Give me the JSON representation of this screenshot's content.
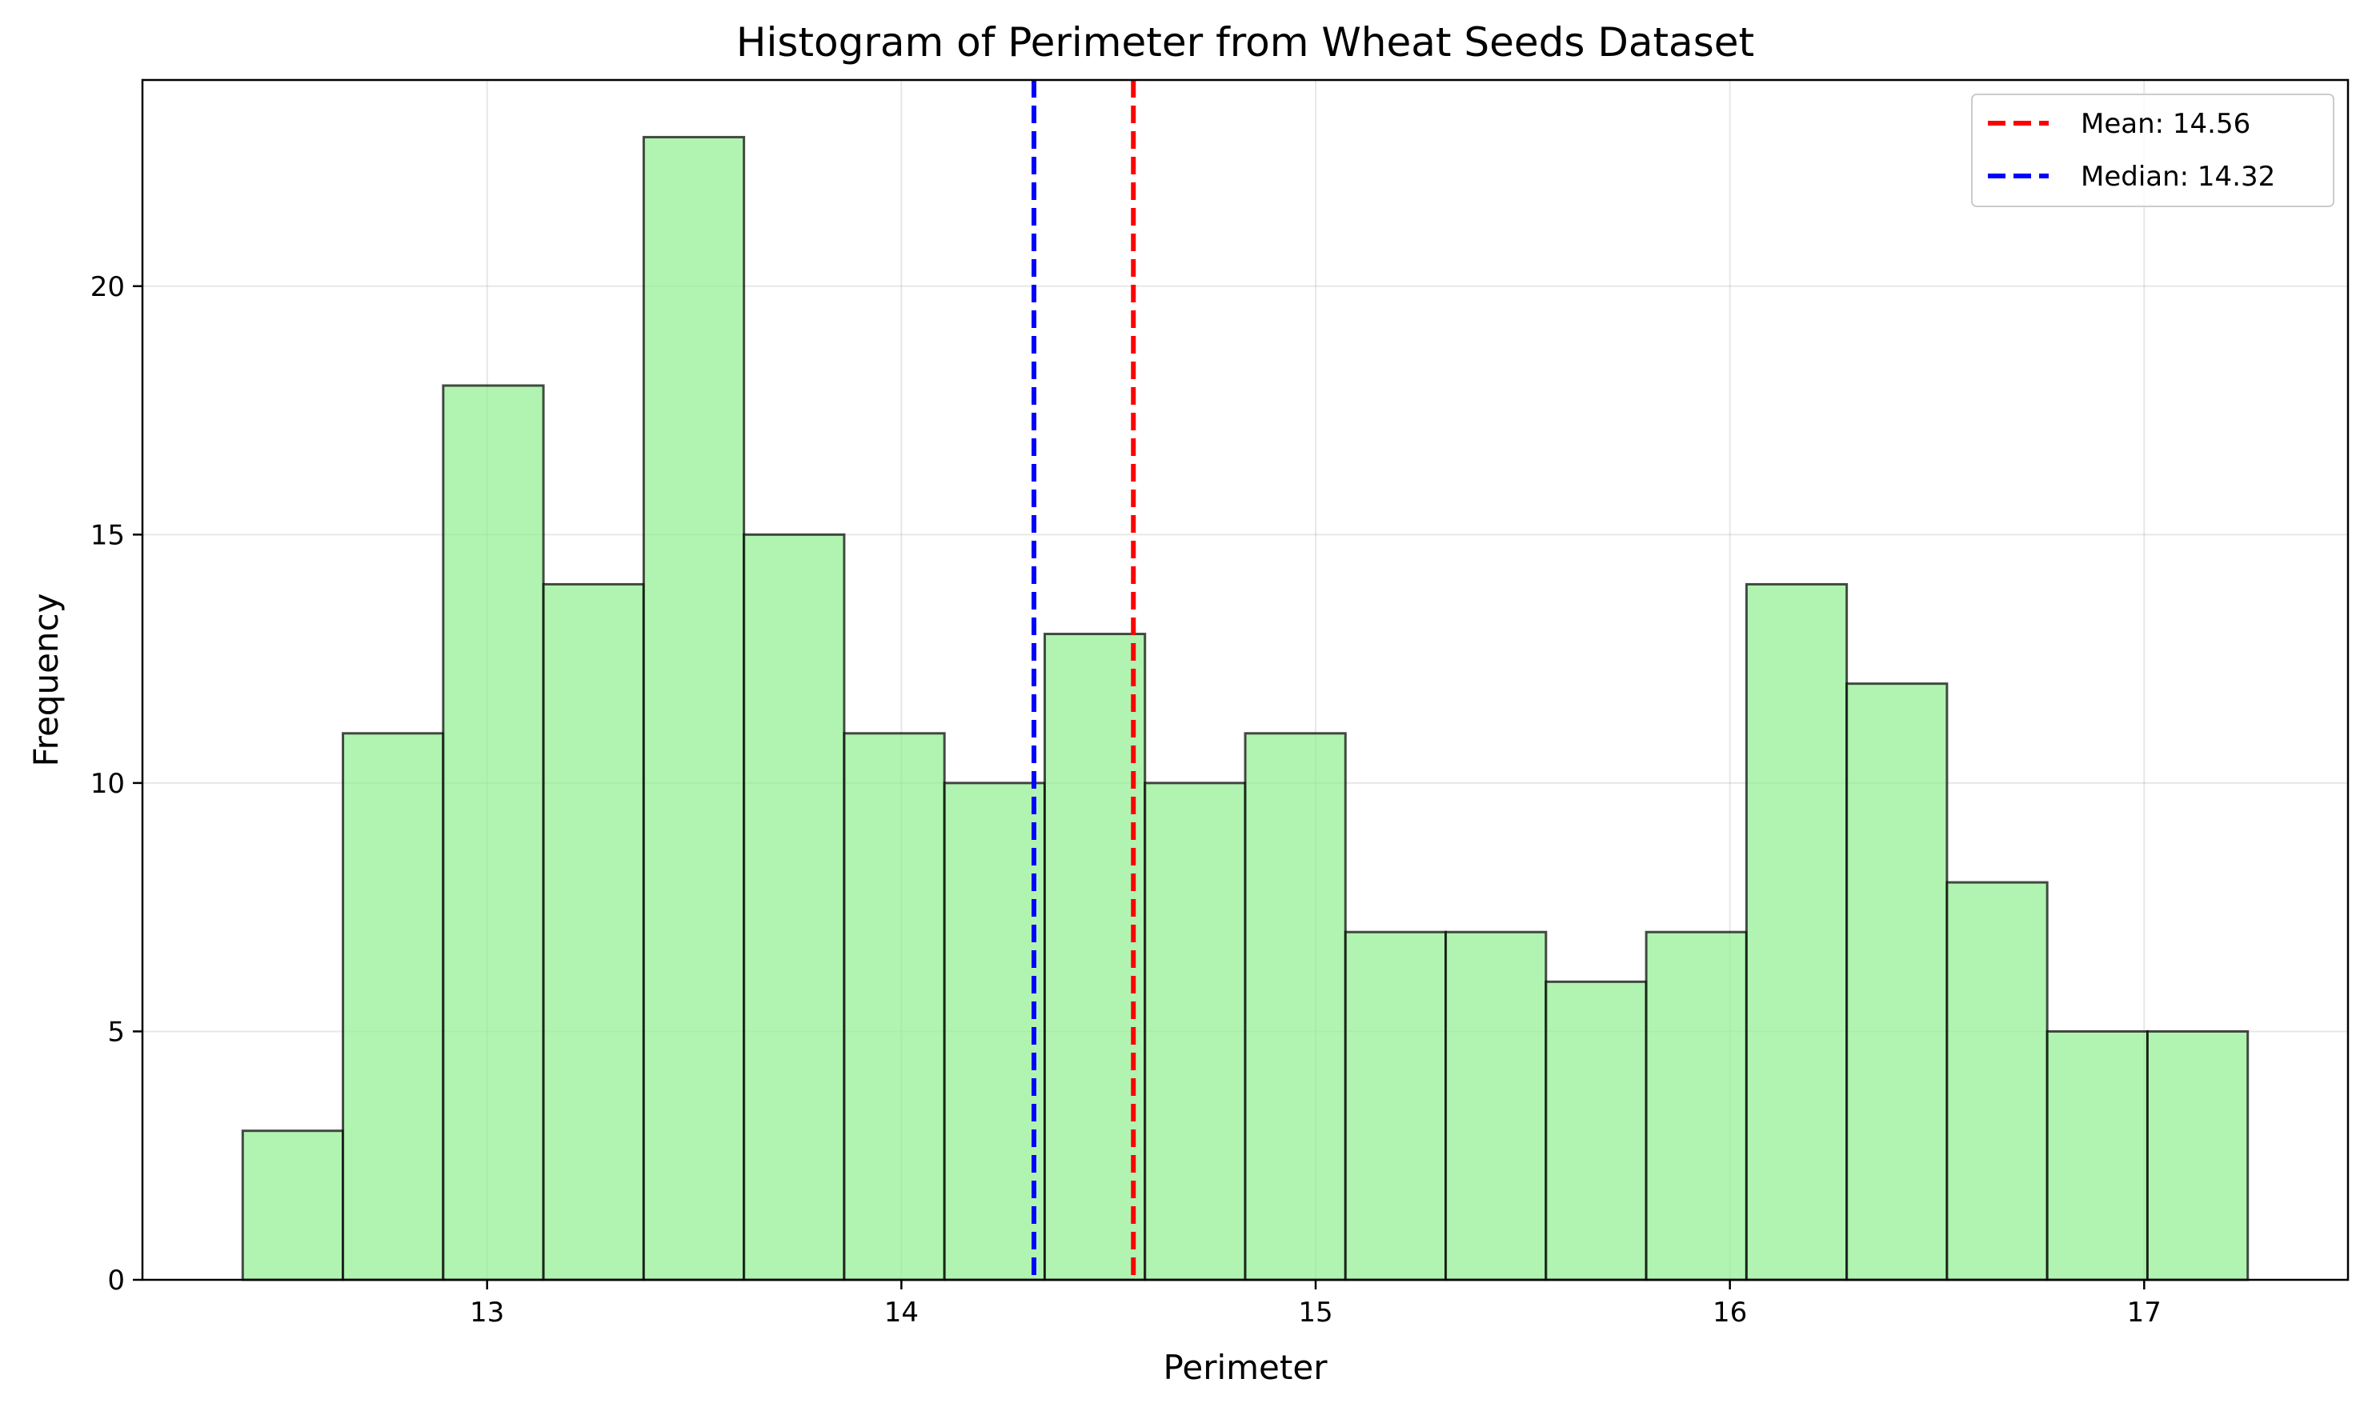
{
  "chart_data": {
    "type": "bar",
    "title": "Histogram of Perimeter from Wheat Seeds Dataset",
    "xlabel": "Perimeter",
    "ylabel": "Frequency",
    "bin_edges": [
      12.41,
      12.652,
      12.894,
      13.136,
      13.378,
      13.62,
      13.862,
      14.104,
      14.346,
      14.588,
      14.83,
      15.072,
      15.314,
      15.556,
      15.798,
      16.04,
      16.282,
      16.524,
      16.766,
      17.008,
      17.25
    ],
    "values": [
      3,
      11,
      18,
      14,
      23,
      15,
      11,
      10,
      13,
      10,
      11,
      7,
      7,
      6,
      7,
      14,
      12,
      8,
      5,
      5
    ],
    "xlim": [
      12.168,
      17.492
    ],
    "ylim": [
      0,
      24.15
    ],
    "xticks": [
      13,
      14,
      15,
      16,
      17
    ],
    "xtick_labels": [
      "13",
      "14",
      "15",
      "16",
      "17"
    ],
    "yticks": [
      0,
      5,
      10,
      15,
      20
    ],
    "ytick_labels": [
      "0",
      "5",
      "10",
      "15",
      "20"
    ],
    "grid": true,
    "bar_color": "#90ee90",
    "bar_edge_color": "#000000",
    "reference_lines": [
      {
        "value": 14.56,
        "color": "#ff0000",
        "label": "Mean: 14.56"
      },
      {
        "value": 14.32,
        "color": "#0000ff",
        "label": "Median: 14.32"
      }
    ],
    "legend_position": "top-right"
  }
}
